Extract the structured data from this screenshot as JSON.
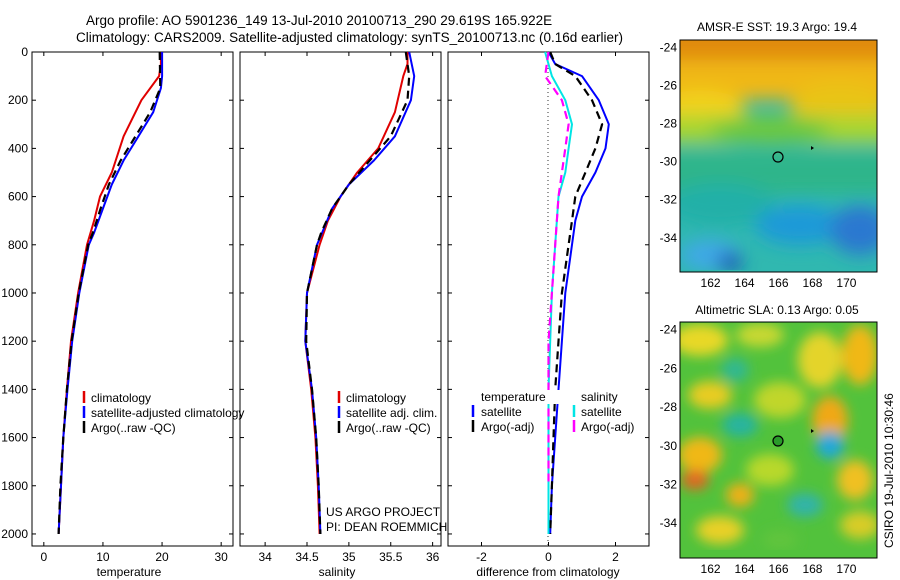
{
  "figure": {
    "title_line1": "Argo profile: AO 5901236_149 13-Jul-2010 20100713_290 29.619S 165.922E",
    "title_line2": "Climatology: CARS2009. Satellite-adjusted climatology: synTS_20100713.nc (0.16d earlier)",
    "credit_line1": "US ARGO PROJECT",
    "credit_line2": "PI: DEAN ROEMMICH",
    "stamp": "CSIRO 19-Jul-2010 10:30:46"
  },
  "colors": {
    "climatology": "#e00000",
    "satellite": "#0000ff",
    "argo": "#000000",
    "sat_salinity": "#00e5e5",
    "argo_salinity": "#ff00ff"
  },
  "chart_data": [
    {
      "type": "line",
      "panel": "temperature",
      "xlabel": "temperature",
      "ylabel": "",
      "xlim": [
        -2,
        32
      ],
      "ylim": [
        2050,
        0
      ],
      "xticks": [
        0,
        10,
        20,
        30
      ],
      "yticks": [
        0,
        200,
        400,
        600,
        800,
        1000,
        1200,
        1400,
        1600,
        1800,
        2000
      ],
      "legend": {
        "position": "lower-right",
        "entries": [
          "climatology",
          "satellite-adjusted climatology",
          "Argo(..raw -QC)"
        ]
      },
      "series": [
        {
          "name": "climatology",
          "color_key": "climatology",
          "points": [
            [
              19.8,
              0
            ],
            [
              19.8,
              50
            ],
            [
              19.5,
              100
            ],
            [
              16.5,
              200
            ],
            [
              13.5,
              350
            ],
            [
              11.5,
              500
            ],
            [
              9.5,
              600
            ],
            [
              8.5,
              700
            ],
            [
              7.3,
              800
            ],
            [
              5.8,
              1000
            ],
            [
              4.6,
              1200
            ],
            [
              3.9,
              1400
            ],
            [
              3.3,
              1600
            ],
            [
              2.9,
              1800
            ],
            [
              2.5,
              2000
            ]
          ]
        },
        {
          "name": "satellite-adjusted climatology",
          "color_key": "satellite",
          "points": [
            [
              20.0,
              0
            ],
            [
              20.0,
              100
            ],
            [
              19.8,
              150
            ],
            [
              18.5,
              250
            ],
            [
              16.0,
              350
            ],
            [
              13.5,
              450
            ],
            [
              11.5,
              550
            ],
            [
              10.0,
              650
            ],
            [
              8.5,
              750
            ],
            [
              7.6,
              800
            ],
            [
              6.0,
              1000
            ],
            [
              4.8,
              1200
            ],
            [
              4.0,
              1400
            ],
            [
              3.3,
              1600
            ],
            [
              2.9,
              1800
            ],
            [
              2.5,
              2000
            ]
          ]
        },
        {
          "name": "Argo(..raw -QC)",
          "color_key": "argo",
          "dashed": true,
          "points": [
            [
              19.6,
              0
            ],
            [
              19.7,
              150
            ],
            [
              18.0,
              250
            ],
            [
              15.5,
              350
            ],
            [
              13.0,
              450
            ],
            [
              11.0,
              550
            ],
            [
              9.6,
              650
            ],
            [
              8.3,
              750
            ],
            [
              7.5,
              800
            ],
            [
              5.9,
              1000
            ],
            [
              4.7,
              1200
            ],
            [
              3.9,
              1400
            ],
            [
              3.3,
              1600
            ],
            [
              2.8,
              1800
            ],
            [
              2.5,
              2000
            ]
          ]
        }
      ]
    },
    {
      "type": "line",
      "panel": "salinity",
      "xlabel": "salinity",
      "xlim": [
        33.7,
        36.1
      ],
      "ylim": [
        2050,
        0
      ],
      "xticks": [
        34,
        34.5,
        35,
        35.5,
        36
      ],
      "legend": {
        "position": "lower-right",
        "entries": [
          "climatology",
          "satellite adj. clim.",
          "Argo(..raw -QC)"
        ]
      },
      "series": [
        {
          "name": "climatology",
          "color_key": "climatology",
          "points": [
            [
              35.7,
              0
            ],
            [
              35.7,
              50
            ],
            [
              35.65,
              100
            ],
            [
              35.55,
              250
            ],
            [
              35.35,
              400
            ],
            [
              35.1,
              500
            ],
            [
              34.9,
              600
            ],
            [
              34.75,
              700
            ],
            [
              34.65,
              800
            ],
            [
              34.5,
              1000
            ],
            [
              34.48,
              1200
            ],
            [
              34.55,
              1400
            ],
            [
              34.6,
              1600
            ],
            [
              34.63,
              1800
            ],
            [
              34.65,
              2000
            ]
          ]
        },
        {
          "name": "satellite adj. clim.",
          "color_key": "satellite",
          "points": [
            [
              35.72,
              0
            ],
            [
              35.78,
              100
            ],
            [
              35.74,
              200
            ],
            [
              35.55,
              350
            ],
            [
              35.3,
              450
            ],
            [
              35.0,
              550
            ],
            [
              34.8,
              650
            ],
            [
              34.68,
              750
            ],
            [
              34.62,
              800
            ],
            [
              34.5,
              1000
            ],
            [
              34.48,
              1200
            ],
            [
              34.56,
              1400
            ],
            [
              34.61,
              1600
            ],
            [
              34.64,
              1800
            ],
            [
              34.66,
              2000
            ]
          ]
        },
        {
          "name": "Argo(..raw -QC)",
          "color_key": "argo",
          "dashed": true,
          "points": [
            [
              35.68,
              0
            ],
            [
              35.72,
              100
            ],
            [
              35.7,
              200
            ],
            [
              35.5,
              350
            ],
            [
              35.25,
              450
            ],
            [
              35.0,
              550
            ],
            [
              34.8,
              650
            ],
            [
              34.67,
              750
            ],
            [
              34.62,
              800
            ],
            [
              34.5,
              1000
            ],
            [
              34.49,
              1200
            ],
            [
              34.56,
              1400
            ],
            [
              34.61,
              1600
            ],
            [
              34.64,
              1800
            ],
            [
              34.66,
              2000
            ]
          ]
        }
      ]
    },
    {
      "type": "line",
      "panel": "difference",
      "xlabel": "difference from climatology",
      "xlim": [
        -3,
        3
      ],
      "ylim": [
        2050,
        0
      ],
      "xticks": [
        -2,
        0,
        2
      ],
      "legend": {
        "position": "lower-right",
        "headers": [
          "temperature",
          "salinity"
        ],
        "entries": [
          "satellite",
          "Argo(-adj)",
          "satellite",
          "Argo(-adj)"
        ]
      },
      "series": [
        {
          "name": "temperature satellite",
          "color_key": "satellite",
          "points": [
            [
              0.0,
              0
            ],
            [
              0.2,
              50
            ],
            [
              1.0,
              100
            ],
            [
              1.5,
              200
            ],
            [
              1.8,
              300
            ],
            [
              1.7,
              400
            ],
            [
              1.4,
              500
            ],
            [
              1.0,
              600
            ],
            [
              0.8,
              700
            ],
            [
              0.7,
              800
            ],
            [
              0.5,
              1000
            ],
            [
              0.4,
              1200
            ],
            [
              0.3,
              1400
            ],
            [
              0.2,
              1600
            ],
            [
              0.1,
              1800
            ],
            [
              0.05,
              2000
            ]
          ]
        },
        {
          "name": "temperature Argo(-adj)",
          "color_key": "argo",
          "dashed": true,
          "points": [
            [
              0.05,
              0
            ],
            [
              0.2,
              50
            ],
            [
              0.8,
              100
            ],
            [
              1.3,
              200
            ],
            [
              1.6,
              300
            ],
            [
              1.4,
              400
            ],
            [
              1.1,
              500
            ],
            [
              0.8,
              600
            ],
            [
              0.7,
              700
            ],
            [
              0.6,
              800
            ],
            [
              0.4,
              1000
            ],
            [
              0.3,
              1200
            ],
            [
              0.2,
              1400
            ],
            [
              0.15,
              1600
            ],
            [
              0.1,
              1800
            ],
            [
              0.05,
              2000
            ]
          ]
        },
        {
          "name": "salinity satellite",
          "color_key": "sat_salinity",
          "points": [
            [
              -0.1,
              0
            ],
            [
              0.1,
              100
            ],
            [
              0.5,
              200
            ],
            [
              0.7,
              300
            ],
            [
              0.6,
              400
            ],
            [
              0.5,
              500
            ],
            [
              0.3,
              600
            ],
            [
              0.2,
              800
            ],
            [
              0.1,
              1000
            ],
            [
              0.05,
              1200
            ],
            [
              0.0,
              1400
            ],
            [
              0.0,
              1600
            ],
            [
              0.0,
              1800
            ],
            [
              0.0,
              2000
            ]
          ]
        },
        {
          "name": "salinity Argo(-adj)",
          "color_key": "argo_salinity",
          "dashed": true,
          "points": [
            [
              0.0,
              0
            ],
            [
              -0.1,
              100
            ],
            [
              0.4,
              200
            ],
            [
              0.6,
              300
            ],
            [
              0.5,
              400
            ],
            [
              0.4,
              500
            ],
            [
              0.3,
              600
            ],
            [
              0.2,
              800
            ],
            [
              0.1,
              1000
            ],
            [
              0.0,
              1200
            ],
            [
              0.0,
              1400
            ],
            [
              0.0,
              1600
            ],
            [
              0.0,
              1800
            ]
          ]
        }
      ]
    },
    {
      "type": "heatmap",
      "panel": "sst-map",
      "title": "AMSR-E SST: 19.3 Argo: 19.4",
      "xlim": [
        160.2,
        171.8
      ],
      "ylim": [
        -35.8,
        -23.6
      ],
      "xticks": [
        162,
        164,
        166,
        168,
        170
      ],
      "yticks": [
        -24,
        -26,
        -28,
        -30,
        -32,
        -34
      ],
      "profile_location": [
        165.9,
        -29.6
      ]
    },
    {
      "type": "heatmap",
      "panel": "sla-map",
      "title": "Altimetric SLA: 0.13 Argo: 0.05",
      "xlim": [
        160.2,
        171.8
      ],
      "ylim": [
        -35.8,
        -23.6
      ],
      "xticks": [
        162,
        164,
        166,
        168,
        170
      ],
      "yticks": [
        -24,
        -26,
        -28,
        -30,
        -32,
        -34
      ],
      "profile_location": [
        165.9,
        -29.6
      ]
    }
  ]
}
